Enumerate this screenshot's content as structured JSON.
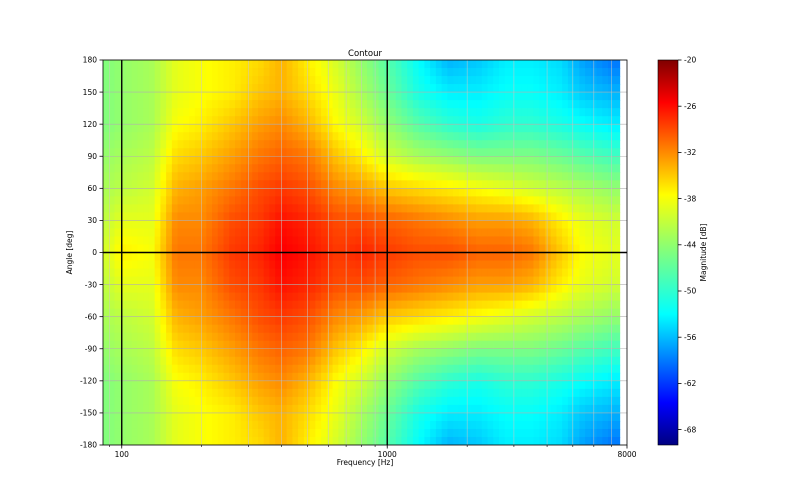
{
  "chart_data": {
    "type": "heatmap",
    "title": "Contour",
    "xlabel": "Frequency [Hz]",
    "ylabel": "Angle [deg]",
    "x_scale": "log",
    "xlim": [
      85,
      8000
    ],
    "ylim": [
      -180,
      180
    ],
    "x_ticks": [
      100,
      1000,
      8000
    ],
    "x_tick_labels": [
      "100",
      "1000",
      "8000"
    ],
    "y_ticks": [
      180,
      150,
      120,
      90,
      60,
      30,
      0,
      -30,
      -60,
      -90,
      -120,
      -150,
      -180
    ],
    "y_tick_labels": [
      "180",
      "150",
      "120",
      "90",
      "60",
      "30",
      "0",
      "-30",
      "-60",
      "-90",
      "-120",
      "-150",
      "-180"
    ],
    "grid": true,
    "reference_lines": {
      "x": [
        100,
        1000
      ],
      "y": [
        0
      ]
    },
    "colorbar": {
      "label": "Magnitude [dB]",
      "range": [
        -70,
        -20
      ],
      "ticks": [
        -20,
        -26,
        -32,
        -38,
        -44,
        -50,
        -56,
        -62,
        -68
      ],
      "tick_labels": [
        "-20",
        "-26",
        "-32",
        "-38",
        "-44",
        "-50",
        "-56",
        "-62",
        "-68"
      ],
      "colormap": "jet"
    },
    "data_extent_hz": [
      85,
      7500
    ],
    "magnitude_db_profile": {
      "frequency_hz": [
        85,
        100,
        130,
        160,
        200,
        260,
        330,
        400,
        500,
        650,
        800,
        1000,
        1300,
        1700,
        2200,
        2800,
        3500,
        4500,
        5500,
        7000
      ],
      "angle_deg": [
        0,
        30,
        60,
        90,
        120,
        150,
        180
      ],
      "values": [
        [
          -41,
          -42,
          -43,
          -44,
          -45,
          -45,
          -45
        ],
        [
          -38,
          -40,
          -42,
          -43,
          -44,
          -44,
          -44
        ],
        [
          -39,
          -40,
          -41,
          -42,
          -43,
          -43,
          -43
        ],
        [
          -32,
          -33,
          -35,
          -37,
          -39,
          -40,
          -40
        ],
        [
          -32,
          -33,
          -34,
          -36,
          -38,
          -39,
          -39
        ],
        [
          -29,
          -30,
          -32,
          -34,
          -36,
          -38,
          -38
        ],
        [
          -28,
          -29,
          -30,
          -32,
          -34,
          -36,
          -37
        ],
        [
          -26,
          -27,
          -29,
          -31,
          -33,
          -35,
          -35
        ],
        [
          -27,
          -28,
          -30,
          -32,
          -35,
          -37,
          -38
        ],
        [
          -29,
          -30,
          -33,
          -36,
          -39,
          -40,
          -41
        ],
        [
          -28,
          -30,
          -34,
          -38,
          -41,
          -43,
          -44
        ],
        [
          -29,
          -31,
          -36,
          -41,
          -44,
          -46,
          -47
        ],
        [
          -30,
          -32,
          -37,
          -43,
          -47,
          -50,
          -51
        ],
        [
          -30,
          -33,
          -38,
          -44,
          -49,
          -52,
          -55
        ],
        [
          -31,
          -34,
          -39,
          -45,
          -50,
          -52,
          -54
        ],
        [
          -31,
          -34,
          -40,
          -45,
          -49,
          -51,
          -52
        ],
        [
          -32,
          -35,
          -41,
          -45,
          -49,
          -51,
          -52
        ],
        [
          -36,
          -38,
          -42,
          -46,
          -50,
          -52,
          -53
        ],
        [
          -39,
          -40,
          -43,
          -47,
          -51,
          -54,
          -56
        ],
        [
          -40,
          -41,
          -44,
          -48,
          -52,
          -55,
          -58
        ]
      ]
    }
  }
}
